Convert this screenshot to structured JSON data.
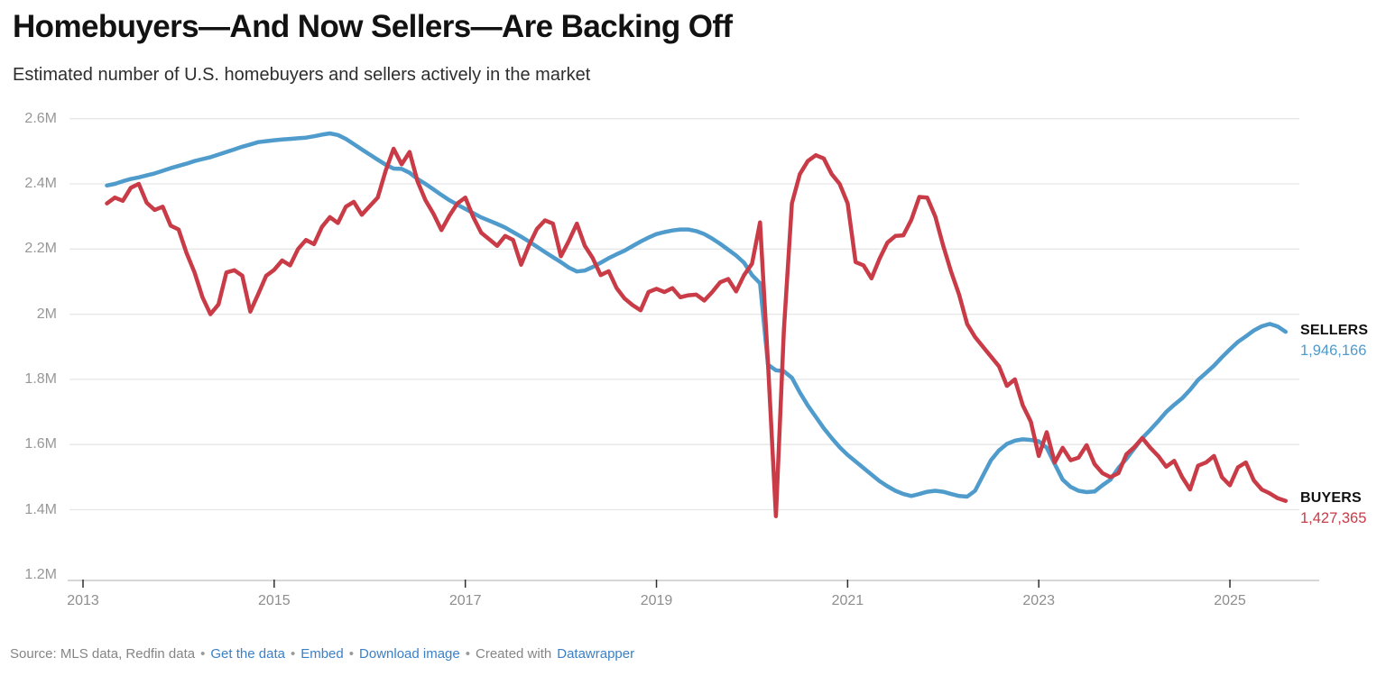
{
  "header": {
    "title": "Homebuyers—And Now Sellers—Are Backing Off",
    "subtitle": "Estimated number of U.S. homebuyers and sellers actively in the market"
  },
  "chart_data": {
    "type": "line",
    "title": "Homebuyers—And Now Sellers—Are Backing Off",
    "subtitle": "Estimated number of U.S. homebuyers and sellers actively in the market",
    "unit": "persons",
    "x_start": "2013-04",
    "x_end": "2025-08",
    "interval": "monthly",
    "grid": true,
    "legend_position": "right-end-labels",
    "y_axis": {
      "min": 1200000,
      "max": 2600000,
      "ticks": [
        {
          "value": 2.6,
          "label": "2.6M",
          "grid": true
        },
        {
          "value": 2.4,
          "label": "2.4M",
          "grid": true
        },
        {
          "value": 2.2,
          "label": "2.2M",
          "grid": true
        },
        {
          "value": 2.0,
          "label": "2M",
          "grid": true
        },
        {
          "value": 1.8,
          "label": "1.8M",
          "grid": true
        },
        {
          "value": 1.6,
          "label": "1.6M",
          "grid": true
        },
        {
          "value": 1.4,
          "label": "1.4M",
          "grid": true
        },
        {
          "value": 1.2,
          "label": "1.2M",
          "grid": false
        }
      ]
    },
    "x_axis": {
      "ticks": [
        {
          "year": 2013,
          "label": "2013"
        },
        {
          "year": 2015,
          "label": "2015"
        },
        {
          "year": 2017,
          "label": "2017"
        },
        {
          "year": 2019,
          "label": "2019"
        },
        {
          "year": 2021,
          "label": "2021"
        },
        {
          "year": 2023,
          "label": "2023"
        },
        {
          "year": 2025,
          "label": "2025"
        }
      ]
    },
    "series": [
      {
        "name": "SELLERS",
        "color": "#4f9bcc",
        "final_value": 1946166,
        "final_value_label": "1,946,166",
        "values_in_millions": [
          2.395,
          2.4,
          2.408,
          2.415,
          2.42,
          2.426,
          2.432,
          2.44,
          2.448,
          2.455,
          2.462,
          2.47,
          2.476,
          2.482,
          2.49,
          2.498,
          2.506,
          2.514,
          2.521,
          2.528,
          2.531,
          2.534,
          2.536,
          2.538,
          2.54,
          2.542,
          2.546,
          2.551,
          2.555,
          2.55,
          2.538,
          2.522,
          2.506,
          2.49,
          2.474,
          2.459,
          2.447,
          2.446,
          2.434,
          2.415,
          2.4,
          2.383,
          2.366,
          2.35,
          2.336,
          2.323,
          2.31,
          2.297,
          2.287,
          2.277,
          2.266,
          2.252,
          2.238,
          2.223,
          2.207,
          2.191,
          2.175,
          2.16,
          2.143,
          2.131,
          2.134,
          2.145,
          2.158,
          2.172,
          2.184,
          2.195,
          2.209,
          2.223,
          2.235,
          2.246,
          2.252,
          2.257,
          2.26,
          2.26,
          2.255,
          2.246,
          2.232,
          2.216,
          2.198,
          2.18,
          2.158,
          2.12,
          2.095,
          1.845,
          1.828,
          1.825,
          1.805,
          1.76,
          1.72,
          1.685,
          1.65,
          1.62,
          1.592,
          1.568,
          1.548,
          1.528,
          1.508,
          1.488,
          1.472,
          1.458,
          1.448,
          1.442,
          1.448,
          1.455,
          1.458,
          1.455,
          1.448,
          1.442,
          1.44,
          1.458,
          1.505,
          1.552,
          1.582,
          1.602,
          1.612,
          1.616,
          1.614,
          1.61,
          1.59,
          1.54,
          1.492,
          1.47,
          1.458,
          1.454,
          1.456,
          1.475,
          1.492,
          1.528,
          1.556,
          1.588,
          1.62,
          1.645,
          1.672,
          1.7,
          1.722,
          1.742,
          1.768,
          1.798,
          1.82,
          1.842,
          1.868,
          1.892,
          1.915,
          1.932,
          1.95,
          1.963,
          1.97,
          1.962,
          1.946
        ]
      },
      {
        "name": "BUYERS",
        "color": "#c93b46",
        "final_value": 1427365,
        "final_value_label": "1,427,365",
        "values_in_millions": [
          2.34,
          2.358,
          2.348,
          2.388,
          2.4,
          2.342,
          2.32,
          2.33,
          2.272,
          2.26,
          2.188,
          2.128,
          2.052,
          2.0,
          2.03,
          2.128,
          2.135,
          2.118,
          2.008,
          2.062,
          2.118,
          2.136,
          2.165,
          2.15,
          2.2,
          2.228,
          2.215,
          2.268,
          2.298,
          2.28,
          2.33,
          2.345,
          2.305,
          2.332,
          2.358,
          2.44,
          2.508,
          2.46,
          2.498,
          2.408,
          2.35,
          2.308,
          2.258,
          2.302,
          2.34,
          2.358,
          2.298,
          2.25,
          2.23,
          2.21,
          2.24,
          2.228,
          2.152,
          2.212,
          2.262,
          2.288,
          2.278,
          2.178,
          2.225,
          2.278,
          2.21,
          2.172,
          2.12,
          2.132,
          2.08,
          2.048,
          2.028,
          2.012,
          2.068,
          2.078,
          2.068,
          2.08,
          2.052,
          2.058,
          2.06,
          2.042,
          2.068,
          2.098,
          2.108,
          2.07,
          2.12,
          2.155,
          2.282,
          1.85,
          1.38,
          1.95,
          2.34,
          2.43,
          2.47,
          2.488,
          2.478,
          2.43,
          2.4,
          2.34,
          2.16,
          2.15,
          2.11,
          2.17,
          2.22,
          2.24,
          2.242,
          2.29,
          2.36,
          2.358,
          2.3,
          2.21,
          2.13,
          2.06,
          1.97,
          1.93,
          1.9,
          1.87,
          1.84,
          1.78,
          1.8,
          1.72,
          1.67,
          1.565,
          1.638,
          1.545,
          1.59,
          1.552,
          1.56,
          1.598,
          1.54,
          1.512,
          1.5,
          1.512,
          1.57,
          1.592,
          1.62,
          1.59,
          1.565,
          1.532,
          1.55,
          1.5,
          1.462,
          1.535,
          1.545,
          1.565,
          1.5,
          1.475,
          1.53,
          1.545,
          1.49,
          1.462,
          1.45,
          1.435,
          1.427
        ]
      }
    ]
  },
  "footer": {
    "muted_color": "#858585",
    "link_color": "#3a80c9",
    "items": [
      {
        "text": "Source: MLS data, Redfin data",
        "kind": "muted",
        "name": "source-text"
      },
      {
        "text": "•",
        "kind": "sep",
        "name": "separator"
      },
      {
        "text": "Get the data",
        "kind": "link",
        "name": "get-the-data-link"
      },
      {
        "text": "•",
        "kind": "sep",
        "name": "separator"
      },
      {
        "text": "Embed",
        "kind": "link",
        "name": "embed-link"
      },
      {
        "text": "•",
        "kind": "sep",
        "name": "separator"
      },
      {
        "text": "Download image",
        "kind": "link",
        "name": "download-image-link"
      },
      {
        "text": "•",
        "kind": "sep",
        "name": "separator"
      },
      {
        "text": "Created with",
        "kind": "muted",
        "name": "created-with-text"
      },
      {
        "text": "Datawrapper",
        "kind": "link",
        "name": "datawrapper-link"
      }
    ]
  }
}
